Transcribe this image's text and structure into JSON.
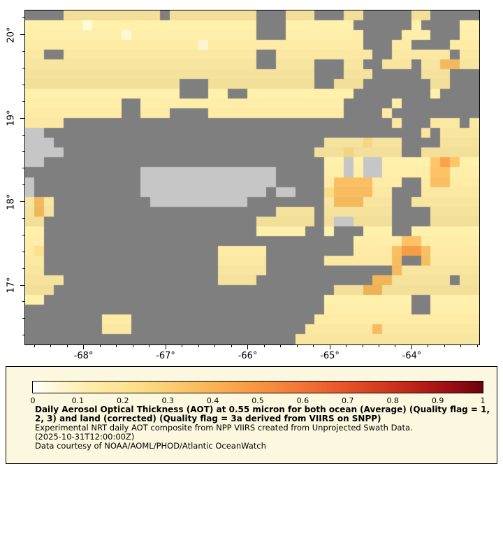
{
  "map": {
    "lon_range": [
      -68.72,
      -63.17
    ],
    "lat_range": [
      16.28,
      20.3
    ],
    "x_ticks": [
      {
        "value": -68,
        "label": "-68°"
      },
      {
        "value": -67,
        "label": "-67°"
      },
      {
        "value": -66,
        "label": "-66°"
      },
      {
        "value": -65,
        "label": "-65°"
      },
      {
        "value": -64,
        "label": "-64°"
      }
    ],
    "y_ticks": [
      {
        "value": 20,
        "label": "20°"
      },
      {
        "value": 19,
        "label": "19°"
      },
      {
        "value": 18,
        "label": "18°"
      },
      {
        "value": 17,
        "label": "17°"
      }
    ],
    "border_color": "#000000",
    "land_color": "#c6c6c6",
    "missing_color": "#7f7f7f"
  },
  "chart_data": {
    "type": "heatmap",
    "title": "Daily Aerosol Optical Thickness (AOT) at 0.55 micron for both ocean (Average) and land (corrected) derived from VIIRS on SNPP",
    "value_range": [
      0,
      1
    ],
    "grid_legend": "Each character is one map cell; # = no data (gray), G = land (light gray), . , - o O = increasing AOT from pale cream to orange",
    "palette": {
      "#": "#7f7f7f",
      "G": "#c6c6c6",
      ".": "#fdf3cd",
      ",": "#fbe8a3",
      "-": "#f9dd88",
      "o": "#f7bc60",
      "O": "#f29a43"
    },
    "grid_rows": [
      "####,,,,,,,,,,#,,,,,,,,,###,,,###,,#####,,#####",
      ",,,,,,.,,,,,,,,,,,,,,,,,###,,,,,,,######,####,,",
      ",,,,,,,,,,.,,,,,,,,,,,,,###,,,,,,,,####,,,###,,",
      ",,,,,,,,,,,,,,,,,,.,,,,,,,,,,,,,,,,###,,####,,,",
      ",,##,,,,,,,,,,,,,,,,,,,,##,,,,,,,,,,##,,,,,,#,,",
      ",,,,,,,,,,,,,,,,,,,,,,,,##,,,,###,,##,,,#,,oo,,",
      ",,,,,,,,,,,,,,,,,,,,,,,,,,,,,,###,,,#####,,,###",
      ",,,,,,,,,,,,,,,,###,,,,,,,,,,,##,,,#######,,###",
      ",,,,,,,,,,,,,,,,###,,##,,,,,,,,,,,########,####",
      ",,,,,,,,,,##,,,,,,,,,,,,,,,,,,,,,#####,########",
      ",,,,,,,,,,##,,,####,,,,,,,,,,,,,,####,#########",
      ",,,,##################################,###,,,#,",
      "GG#######################################,#,,,,",
      "GGG############################,,,,-,,,####,,,,",
      "GGGG##########################,,,-,,,,,##,,,,,,",
      "GG#############################,,G,GG,,,,,oOo,,",
      "############GGGGGGGGGGGGGG#####,,G,GG,,,,,oo,,,",
      "G###########GGGGGGGGGGGGGG#####,oooo,,,##,oo,,,",
      "G###########GGGGGGGGGGGGG#GG###-oooo,,###,,,,,,",
      ",o,##########GGGGGGGGGG########,ooo,,,##,,,,,,,",
      ",o,#######################,,,,#,,,,,,,####,,,,,",
      ",,######################,,,,,,#,GG,,,,####,,,,,",
      ",,######################,,,,,##,###,,,##,,,,,,,",
      ",,################################,,,,,oo,,,,,,",
      ",-##################,,,,,#########,,,,oOOo,,,,,",
      ",,##################,,,,,######,,,,,,,o##o,,,,,",
      ",,##################,,,,,#############o,,,,,,,,",
      ",,,,################,,,,############oo,,,,,,#,,",
      ",,,#############################,,,oo,,,,,,,,,,",
      ",,#############################,,,,,,,,,##,,,,,",
      "###############################,,,,,,,,,##,,,,,",
      "########,,,###################,,,,,,,,,,,,,,,,,",
      "########,,,##################,,,,,,,o,,,,,,,,,,",
      "############################,,,,,,,,,,,,,,,,,,,"
    ],
    "colorbar": {
      "min": 0,
      "max": 1,
      "tick_labels": [
        "0",
        "0.1",
        "0.2",
        "0.3",
        "0.4",
        "0.5",
        "0.6",
        "0.7",
        "0.8",
        "0.9",
        "1"
      ],
      "stops": [
        [
          0,
          "#ffffff"
        ],
        [
          0.06,
          "#fff6d0"
        ],
        [
          0.13,
          "#feeca8"
        ],
        [
          0.22,
          "#fde18c"
        ],
        [
          0.32,
          "#fcc96c"
        ],
        [
          0.42,
          "#fbac52"
        ],
        [
          0.52,
          "#f88f40"
        ],
        [
          0.62,
          "#f16c33"
        ],
        [
          0.72,
          "#e14b27"
        ],
        [
          0.82,
          "#c62c1c"
        ],
        [
          0.92,
          "#a00f14"
        ],
        [
          1,
          "#6d000e"
        ]
      ]
    }
  },
  "legend": {
    "background": "#fcf8e0",
    "lines": [
      {
        "text": "Daily Aerosol Optical Thickness (AOT) at 0.55 micron for both ocean (Average) (Quality flag = 1,",
        "bold": true
      },
      {
        "text": "2, 3) and land (corrected) (Quality flag = 3a derived from VIIRS on SNPP)",
        "bold": true
      },
      {
        "text": "Experimental NRT daily AOT composite from NPP VIIRS created from Unprojected Swath Data.",
        "bold": false
      },
      {
        "text": "(2025-10-31T12:00:00Z)",
        "bold": false
      },
      {
        "text": "Data courtesy of NOAA/AOML/PHOD/Atlantic OceanWatch",
        "bold": false
      }
    ]
  }
}
